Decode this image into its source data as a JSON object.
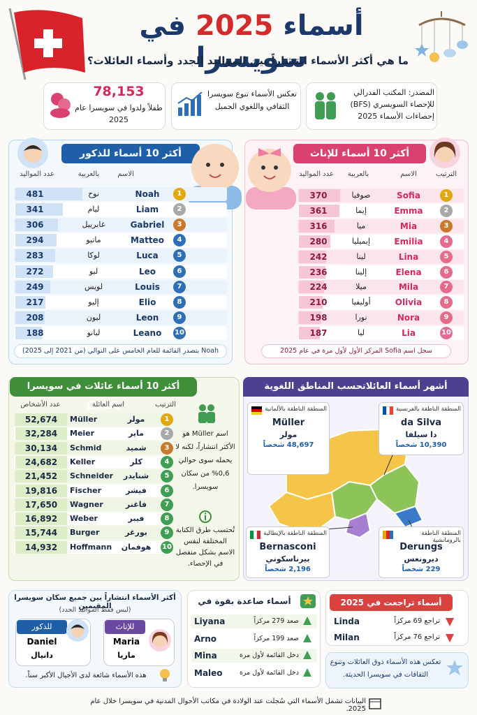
{
  "header": {
    "title_start": "أسماء",
    "title_year": "2025",
    "title_end": "في سويسرا",
    "subtitle": "ما هي أكثر الأسماء انتشاراً بين المواليد الجدد وأسماء العائلات؟"
  },
  "info": {
    "source": "المصدر: المكتب الفدرالي للإحصاء السويسري (BFS) إحصاءات الأسماء 2025",
    "diversity": "تعكس الأسماء تنوع سويسرا الثقافي واللغوي الجميل",
    "births": "78,153",
    "births_text": "طفلاً ولدوا في سويسرا عام 2025"
  },
  "boys": {
    "title": "أكثر 10 أسماء للذكور",
    "headers": [
      "الاسم",
      "بالعربية",
      "عدد المواليد"
    ],
    "rows": [
      {
        "rank": 1,
        "name": "Noah",
        "arabic": "نوح",
        "count": 481
      },
      {
        "rank": 2,
        "name": "Liam",
        "arabic": "ليام",
        "count": 341
      },
      {
        "rank": 3,
        "name": "Gabriel",
        "arabic": "غابرييل",
        "count": 306
      },
      {
        "rank": 4,
        "name": "Matteo",
        "arabic": "ماتيو",
        "count": 294
      },
      {
        "rank": 5,
        "name": "Luca",
        "arabic": "لوكا",
        "count": 283
      },
      {
        "rank": 6,
        "name": "Leo",
        "arabic": "ليو",
        "count": 272
      },
      {
        "rank": 7,
        "name": "Louis",
        "arabic": "لويس",
        "count": 249
      },
      {
        "rank": 8,
        "name": "Elio",
        "arabic": "إليو",
        "count": 217
      },
      {
        "rank": 9,
        "name": "Leon",
        "arabic": "ليون",
        "count": 208
      },
      {
        "rank": 10,
        "name": "Leano",
        "arabic": "ليانو",
        "count": 188
      }
    ],
    "note": "Noah يتصدر القائمة للعام الخامس على التوالي (من 2021 إلى 2025)"
  },
  "girls": {
    "title": "أكثر 10 أسماء للإناث",
    "headers": [
      "الترتيب",
      "الاسم",
      "بالعربية",
      "عدد المواليد"
    ],
    "rows": [
      {
        "rank": 1,
        "name": "Sofia",
        "arabic": "صوفيا",
        "count": 370
      },
      {
        "rank": 2,
        "name": "Emma",
        "arabic": "إيما",
        "count": 361
      },
      {
        "rank": 3,
        "name": "Mia",
        "arabic": "ميا",
        "count": 316
      },
      {
        "rank": 4,
        "name": "Emilia",
        "arabic": "إيميليا",
        "count": 280
      },
      {
        "rank": 5,
        "name": "Lina",
        "arabic": "لينا",
        "count": 242
      },
      {
        "rank": 6,
        "name": "Elena",
        "arabic": "إلينا",
        "count": 236
      },
      {
        "rank": 7,
        "name": "Mila",
        "arabic": "ميلا",
        "count": 224
      },
      {
        "rank": 8,
        "name": "Olivia",
        "arabic": "أوليفيا",
        "count": 210
      },
      {
        "rank": 9,
        "name": "Nora",
        "arabic": "نورا",
        "count": 198
      },
      {
        "rank": 10,
        "name": "Lia",
        "arabic": "ليا",
        "count": 187
      }
    ],
    "note": "سجل اسم Sofia المركز الأول لأول مرة في عام 2025"
  },
  "families": {
    "title": "أكثر 10 أسماء عائلات في سويسرا (2025)",
    "headers": [
      "الترتيب",
      "اسم العائلة",
      "عدد الأشخاص"
    ],
    "rows": [
      {
        "rank": 1,
        "arabic": "مولر",
        "name": "Müller",
        "count": "52,674"
      },
      {
        "rank": 2,
        "arabic": "ماير",
        "name": "Meier",
        "count": "32,284"
      },
      {
        "rank": 3,
        "arabic": "شميد",
        "name": "Schmid",
        "count": "30,134"
      },
      {
        "rank": 4,
        "arabic": "كلر",
        "name": "Keller",
        "count": "24,682"
      },
      {
        "rank": 5,
        "arabic": "شنايدر",
        "name": "Schneider",
        "count": "21,452"
      },
      {
        "rank": 6,
        "arabic": "فيشر",
        "name": "Fischer",
        "count": "19,816"
      },
      {
        "rank": 7,
        "arabic": "فاغنر",
        "name": "Wagner",
        "count": "17,650"
      },
      {
        "rank": 8,
        "arabic": "فيبر",
        "name": "Weber",
        "count": "16,892"
      },
      {
        "rank": 9,
        "arabic": "بورغر",
        "name": "Burger",
        "count": "15,744"
      },
      {
        "rank": 10,
        "arabic": "هوفمان",
        "name": "Hoffmann",
        "count": "14,932"
      }
    ],
    "note_1": "اسم Müller هو الأكثر انتشاراً، لكنه لا يحمله سوى حوالي 0,6% من سكان سويسرا.",
    "note_2": "تُحتسب طرق الكتابة المختلفة لنفس الاسم بشكل منفصل في الإحصاء."
  },
  "regions": {
    "title": "أشهر أسماء العائلاتحسب المناطق اللغوية",
    "items": [
      {
        "region": "المنطقة الناطقة بالألمانية",
        "name": "Müller",
        "arabic": "مولر",
        "count": "48,697 شخصاً"
      },
      {
        "region": "المنطقة الناطقة بالفرنسية",
        "name": "da Silva",
        "arabic": "دا سيلفا",
        "count": "10,390 شخصاً"
      },
      {
        "region": "المنطقة الناطقة بالإيطالية",
        "name": "Bernasconi",
        "arabic": "بيرناسكوني",
        "count": "2,196 شخصاً"
      },
      {
        "region": "المنطقة الناطقة بالرومانشية",
        "name": "Derungs",
        "arabic": "ديرونغس",
        "count": "229 شخصاً"
      }
    ]
  },
  "common": {
    "title": "أكثر الأسماء انتشاراً بين جميع سكان سويسرا المقيمين",
    "subtitle": "(ليس فقط المواليد الجدد)",
    "female_label": "للإناث",
    "female_name": "Maria",
    "female_arabic": "ماريا",
    "male_label": "للذكور",
    "male_name": "Daniel",
    "male_arabic": "دانيال",
    "note": "هذه الأسماء شائعة لدى الأجيال الأكبر سناً."
  },
  "rising": {
    "title": "أسماء صاعدة بقوة في 2025",
    "rows": [
      {
        "name": "Liyana",
        "change": "صعد 279 مركزاً"
      },
      {
        "name": "Arno",
        "change": "صعد 199 مركزاً"
      },
      {
        "name": "Mina",
        "change": "دخل القائمة لأول مرة"
      },
      {
        "name": "Maleo",
        "change": "دخل القائمة لأول مرة"
      }
    ]
  },
  "falling": {
    "title": "أسماء تراجعت في 2025",
    "rows": [
      {
        "name": "Linda",
        "change": "تراجع 69 مركزاً"
      },
      {
        "name": "Milan",
        "change": "تراجع 76 مركزاً"
      }
    ],
    "note": "تعكس هذه الأسماء ذوق العائلات وتنوع الثقافات في سويسرا الحديثة."
  },
  "footer": "البيانات تشمل الأسماء التي سُجلت عند الولادة في مكاتب الأحوال المدنية في سويسرا خلال عام 2025."
}
